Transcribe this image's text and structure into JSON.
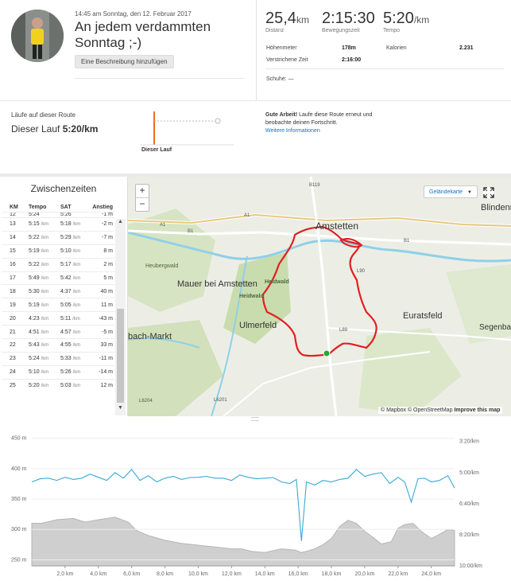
{
  "activity": {
    "timestamp": "14:45 am Sonntag, den 12. Februar 2017",
    "title": "An jedem verdammten Sonntag ;-)",
    "add_description_label": "Eine Beschreibung hinzufügen"
  },
  "stats": {
    "distance": {
      "value": "25,4",
      "unit": "km",
      "label": "Distanz"
    },
    "moving_time": {
      "value": "2:15:30",
      "label": "Bewegungszeit"
    },
    "pace": {
      "value": "5:20",
      "unit": "/km",
      "label": "Tempo"
    },
    "elevation_label": "Höhenmeter",
    "elevation_value": "178m",
    "calories_label": "Kalorien",
    "calories_value": "2.231",
    "elapsed_label": "Verstrichene Zeit",
    "elapsed_value": "2:16:00",
    "shoes_label": "Schuhe:",
    "shoes_value": "—"
  },
  "route": {
    "label": "Läufe auf dieser Route",
    "this_run_prefix": "Dieser Lauf",
    "this_run_pace": "5:20/km",
    "marker_label": "Dieser Lauf",
    "good_job_bold": "Gute Arbeit!",
    "good_job_text": " Laufe diese Route erneut und beobachte deinen Fortschritt.",
    "more_info_link": "Weitere Informationen"
  },
  "splits": {
    "title": "Zwischenzeiten",
    "columns": [
      "KM",
      "Tempo",
      "SAT",
      "Anstieg"
    ],
    "unit": "/km",
    "partial_row": {
      "km": "12",
      "tempo": "5:24",
      "sat": "5:26",
      "gain": "-1 m"
    },
    "rows": [
      {
        "km": "13",
        "tempo": "5:15",
        "sat": "5:18",
        "gain": "-2 m"
      },
      {
        "km": "14",
        "tempo": "5:22",
        "sat": "5:29",
        "gain": "-7 m"
      },
      {
        "km": "15",
        "tempo": "5:19",
        "sat": "5:10",
        "gain": "8 m"
      },
      {
        "km": "16",
        "tempo": "5:22",
        "sat": "5:17",
        "gain": "2 m"
      },
      {
        "km": "17",
        "tempo": "5:49",
        "sat": "5:42",
        "gain": "5 m"
      },
      {
        "km": "18",
        "tempo": "5:30",
        "sat": "4:37",
        "gain": "40 m"
      },
      {
        "km": "19",
        "tempo": "5:19",
        "sat": "5:05",
        "gain": "11 m"
      },
      {
        "km": "20",
        "tempo": "4:23",
        "sat": "5:11",
        "gain": "-43 m"
      },
      {
        "km": "21",
        "tempo": "4:51",
        "sat": "4:57",
        "gain": "-5 m"
      },
      {
        "km": "22",
        "tempo": "5:43",
        "sat": "4:55",
        "gain": "33 m"
      },
      {
        "km": "23",
        "tempo": "5:24",
        "sat": "5:33",
        "gain": "-11 m"
      },
      {
        "km": "24",
        "tempo": "5:10",
        "sat": "5:26",
        "gain": "-14 m"
      },
      {
        "km": "25",
        "tempo": "5:20",
        "sat": "5:03",
        "gain": "12 m"
      }
    ]
  },
  "map": {
    "zoom_in": "+",
    "zoom_out": "−",
    "map_type": "Geländekarte",
    "attribution": "© Mapbox © OpenStreetMap",
    "improve_link": "Improve this map",
    "places": [
      {
        "name": "Amstetten",
        "kind": "city"
      },
      {
        "name": "Blindenmarkt",
        "kind": "town"
      },
      {
        "name": "Mauer bei Amstetten",
        "kind": "town"
      },
      {
        "name": "Euratsfeld",
        "kind": "town"
      },
      {
        "name": "Ulmerfeld",
        "kind": "town"
      },
      {
        "name": "bach-Markt",
        "kind": "town"
      },
      {
        "name": "Segenbach",
        "kind": "town"
      },
      {
        "name": "Heubergwald",
        "kind": "small"
      },
      {
        "name": "Heidwald",
        "kind": "forest"
      },
      {
        "name": "B119",
        "kind": "road"
      },
      {
        "name": "A1",
        "kind": "road"
      },
      {
        "name": "B1",
        "kind": "road"
      },
      {
        "name": "L89",
        "kind": "road"
      },
      {
        "name": "L6201",
        "kind": "road"
      },
      {
        "name": "L6204",
        "kind": "road"
      },
      {
        "name": "L90",
        "kind": "road"
      }
    ],
    "colors": {
      "route": "#e02020",
      "start": "#22aa33",
      "water": "#8fd0e8",
      "forest": "#c9dcae"
    }
  },
  "chart_data": {
    "type": "line",
    "x_ticks": [
      "2,0 km",
      "4,0 km",
      "6,0 km",
      "8,0 km",
      "10,0 km",
      "12,0 km",
      "14,0 km",
      "16,0 km",
      "18,0 km",
      "20,0 km",
      "22,0 km",
      "24,0 km"
    ],
    "x_tick_values": [
      2,
      4,
      6,
      8,
      10,
      12,
      14,
      16,
      18,
      20,
      22,
      24
    ],
    "xlim": [
      0,
      25.4
    ],
    "y_left_ticks": [
      "450 m",
      "400 m",
      "350 m",
      "300 m",
      "250 m"
    ],
    "y_left_values": [
      450,
      400,
      350,
      300,
      250
    ],
    "ylim_left": [
      240,
      460
    ],
    "y_right_ticks": [
      "3:20/km",
      "5:00/km",
      "6:40/km",
      "8:20/km",
      "10:00/km"
    ],
    "y_right_values_sec": [
      200,
      300,
      400,
      500,
      600
    ],
    "ylim_right_sec": [
      170,
      600
    ],
    "series": [
      {
        "kind": "elevation",
        "color": "#bfbfbf",
        "axis": "left",
        "x": [
          0,
          0.6,
          1.5,
          2.5,
          3.2,
          4.0,
          5.0,
          5.8,
          6.3,
          7.0,
          8.0,
          9.0,
          10.0,
          11.0,
          12.0,
          12.6,
          13.2,
          14.0,
          15.0,
          15.8,
          16.2,
          16.5,
          17.0,
          17.5,
          18.0,
          18.5,
          19.0,
          19.5,
          20.0,
          20.5,
          21.0,
          21.6,
          22.0,
          22.4,
          22.9,
          23.4,
          24.0,
          24.5,
          25.0,
          25.4
        ],
        "values": [
          310,
          310,
          316,
          318,
          312,
          316,
          320,
          312,
          298,
          290,
          282,
          277,
          274,
          271,
          268,
          268,
          264,
          262,
          268,
          266,
          262,
          264,
          268,
          275,
          285,
          305,
          315,
          310,
          297,
          287,
          276,
          280,
          302,
          308,
          310,
          297,
          285,
          292,
          300,
          298
        ]
      },
      {
        "kind": "pace",
        "color": "#3aa8d8",
        "axis": "right",
        "x": [
          0,
          0.5,
          1.0,
          1.5,
          2.0,
          2.5,
          3.0,
          3.5,
          4.0,
          4.5,
          5.0,
          5.5,
          6.0,
          6.5,
          7.0,
          7.5,
          8.0,
          8.5,
          9.0,
          9.5,
          10.0,
          10.5,
          11.0,
          11.5,
          12.0,
          12.5,
          13.0,
          13.5,
          14.0,
          14.5,
          15.0,
          15.5,
          15.9,
          16.2,
          16.5,
          17.0,
          17.5,
          18.0,
          18.5,
          19.0,
          19.5,
          20.0,
          20.5,
          21.0,
          21.5,
          22.0,
          22.4,
          22.8,
          23.2,
          23.6,
          24.0,
          24.5,
          25.0,
          25.4
        ],
        "values_sec": [
          330,
          320,
          318,
          325,
          315,
          322,
          318,
          305,
          315,
          325,
          300,
          318,
          290,
          325,
          310,
          330,
          318,
          312,
          322,
          316,
          315,
          312,
          318,
          318,
          325,
          308,
          315,
          320,
          318,
          316,
          330,
          335,
          322,
          520,
          330,
          340,
          325,
          330,
          322,
          318,
          290,
          312,
          305,
          300,
          335,
          315,
          330,
          395,
          320,
          318,
          330,
          325,
          310,
          350
        ]
      }
    ]
  }
}
